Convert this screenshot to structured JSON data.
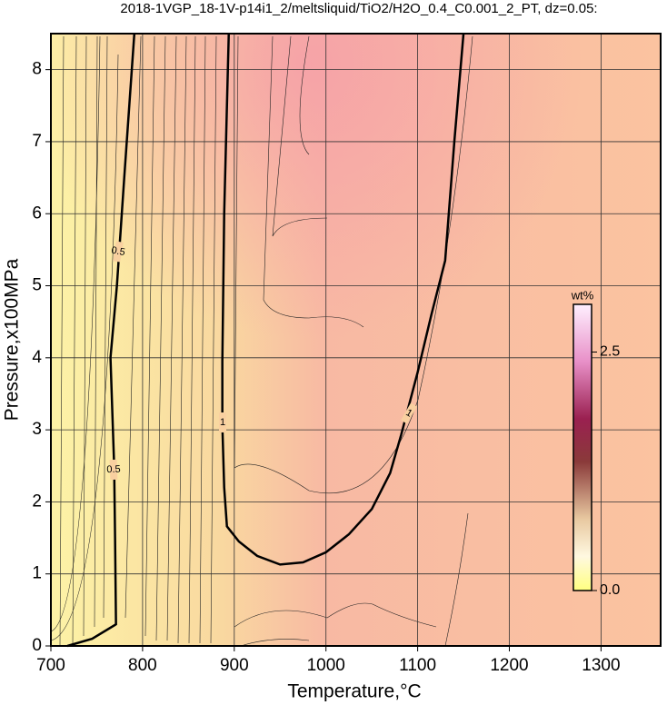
{
  "chart_data": {
    "type": "contour",
    "title": "2018-1VGP_18-1V-p14i1_2/meltsliquid/TiO2/H2O_0.4_C0.001_2_PT, dz=0.05:",
    "x_label": "Temperature,°C",
    "y_label": "Pressure,x100MPa",
    "xlim": [
      700,
      1365
    ],
    "ylim": [
      0,
      8.5
    ],
    "xticks": [
      700,
      800,
      900,
      1000,
      1100,
      1200,
      1300
    ],
    "yticks": [
      0,
      1,
      2,
      3,
      4,
      5,
      6,
      7,
      8
    ],
    "grid": true,
    "series": [
      {
        "name": "0.5",
        "color": "#000000",
        "x": [
          718,
          745,
          771,
          770,
          769,
          765,
          772,
          780,
          791
        ],
        "y": [
          0,
          0.1,
          0.3,
          1.5,
          2.5,
          4.0,
          5.0,
          6.5,
          8.5
        ]
      },
      {
        "name": "1",
        "color": "#000000",
        "x": [
          894,
          889,
          887,
          887,
          889,
          892,
          905,
          925,
          950,
          975,
          1000,
          1025,
          1050,
          1070,
          1082,
          1100,
          1115,
          1130,
          1140,
          1150
        ],
        "y": [
          8.5,
          6.0,
          3.95,
          3.06,
          2.2,
          1.66,
          1.45,
          1.25,
          1.13,
          1.16,
          1.3,
          1.55,
          1.9,
          2.4,
          2.93,
          3.8,
          4.6,
          5.35,
          7.0,
          8.5
        ]
      }
    ],
    "colorbar": {
      "label": "wt%",
      "lim": [
        0,
        3.0
      ],
      "ticks": [
        {
          "value": 0,
          "label": "0.0"
        },
        2.5
      ]
    }
  }
}
